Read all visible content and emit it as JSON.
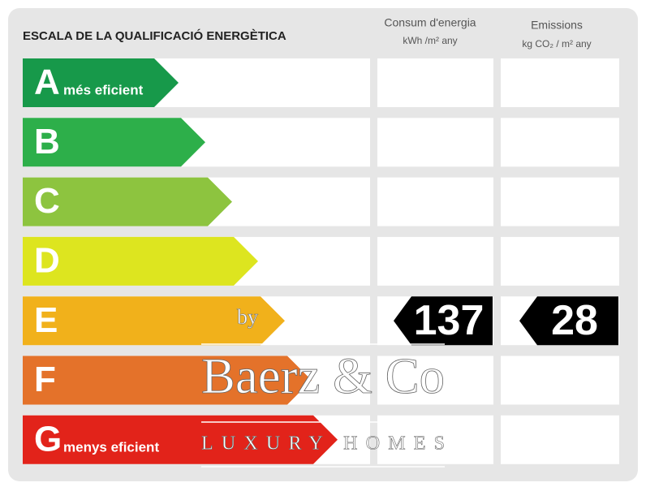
{
  "header": {
    "title": "ESCALA DE LA QUALIFICACIÓ ENERGÈTICA",
    "consumption": {
      "label": "Consum d'energia",
      "unit": "kWh /m² any"
    },
    "emissions": {
      "label": "Emissions",
      "unit": "kg CO₂ / m² any"
    }
  },
  "ratings": [
    {
      "letter": "A",
      "label": "més eficient"
    },
    {
      "letter": "B"
    },
    {
      "letter": "C"
    },
    {
      "letter": "D"
    },
    {
      "letter": "E"
    },
    {
      "letter": "F"
    },
    {
      "letter": "G",
      "label": "menys eficient"
    }
  ],
  "result": {
    "consumption": 137,
    "emissions": 28
  },
  "watermark": {
    "by": "by",
    "name": "Baerz & Co",
    "tagline": "LUXURY HOMES"
  }
}
